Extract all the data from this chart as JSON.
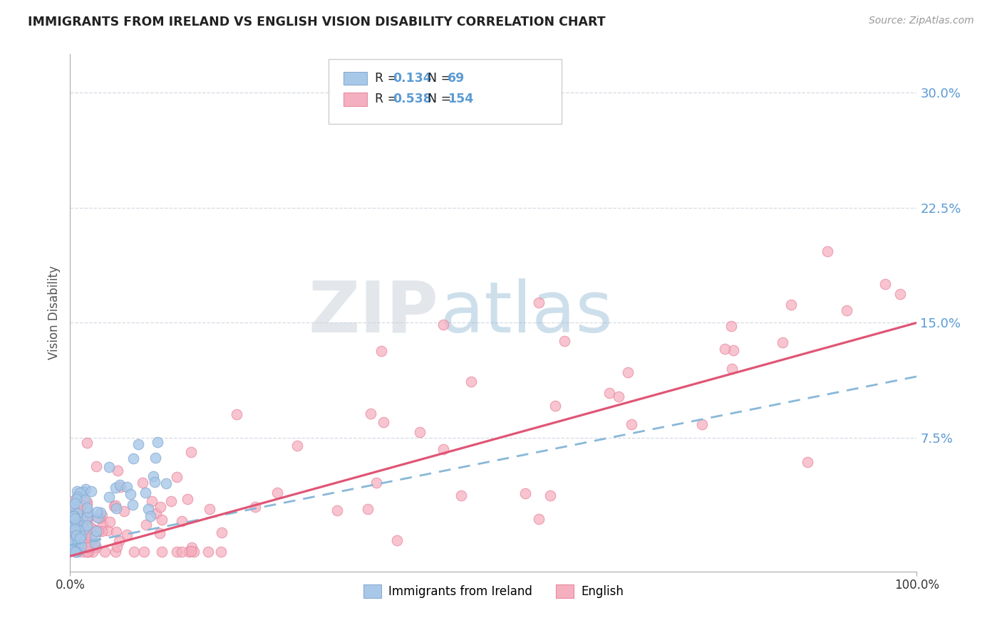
{
  "title": "IMMIGRANTS FROM IRELAND VS ENGLISH VISION DISABILITY CORRELATION CHART",
  "source": "Source: ZipAtlas.com",
  "ylabel": "Vision Disability",
  "xmin": 0.0,
  "xmax": 1.0,
  "ymin": -0.012,
  "ymax": 0.325,
  "blue_R": "0.134",
  "blue_N": "69",
  "pink_R": "0.538",
  "pink_N": "154",
  "blue_color": "#a8c8e8",
  "pink_color": "#f5b0c0",
  "blue_edge_color": "#88aad4",
  "pink_edge_color": "#e888a0",
  "blue_line_color": "#88b8d8",
  "pink_line_color": "#e05575",
  "legend_blue_label": "Immigrants from Ireland",
  "legend_pink_label": "English",
  "watermark_zip_color": "#c8d4e0",
  "watermark_atlas_color": "#a0c0d8",
  "background_color": "#ffffff",
  "grid_color": "#d0d8e0",
  "title_color": "#222222",
  "axis_label_color": "#5b9bd5",
  "r_n_color": "#5b9bd5",
  "yticks": [
    0.075,
    0.15,
    0.225,
    0.3
  ],
  "ytick_labels": [
    "7.5%",
    "15.0%",
    "22.5%",
    "30.0%"
  ],
  "blue_trend": [
    0.005,
    0.115
  ],
  "pink_trend": [
    -0.002,
    0.15
  ]
}
